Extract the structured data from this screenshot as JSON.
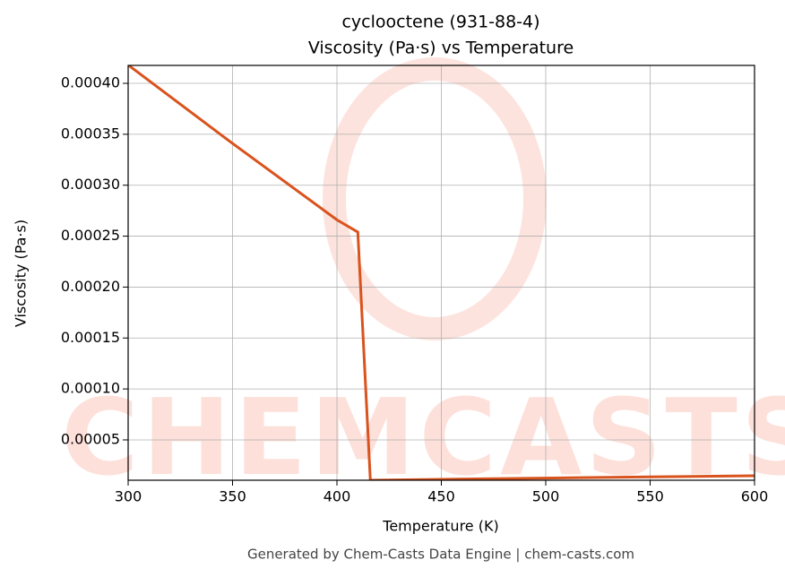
{
  "chart_data": {
    "type": "line",
    "title": "cyclooctene (931-88-4)",
    "subtitle": "Viscosity (Pa·s) vs Temperature",
    "x_label": "Temperature (K)",
    "y_label": "Viscosity (Pa·s)",
    "footer": "Generated by Chem-Casts Data Engine | chem-casts.com",
    "watermark": "CHEMCASTS",
    "x": [
      300,
      350,
      400,
      410,
      416,
      450,
      500,
      550,
      600
    ],
    "series": [
      {
        "name": "Viscosity",
        "color": "#d9531e",
        "values": [
          0.000418,
          0.000341,
          0.000266,
          0.000254,
          1.04e-05,
          1.13e-05,
          1.25e-05,
          1.37e-05,
          1.48e-05
        ]
      }
    ],
    "xlim": [
      300,
      600
    ],
    "ylim": [
      1.04e-05,
      0.0004176
    ],
    "xticks": [
      300,
      350,
      400,
      450,
      500,
      550,
      600
    ],
    "yticks": [
      {
        "value": 5e-05,
        "label": "0.00005"
      },
      {
        "value": 0.0001,
        "label": "0.00010"
      },
      {
        "value": 0.00015,
        "label": "0.00015"
      },
      {
        "value": 0.0002,
        "label": "0.00020"
      },
      {
        "value": 0.00025,
        "label": "0.00025"
      },
      {
        "value": 0.0003,
        "label": "0.00030"
      },
      {
        "value": 0.00035,
        "label": "0.00035"
      },
      {
        "value": 0.0004,
        "label": "0.00040"
      }
    ],
    "grid": true
  }
}
